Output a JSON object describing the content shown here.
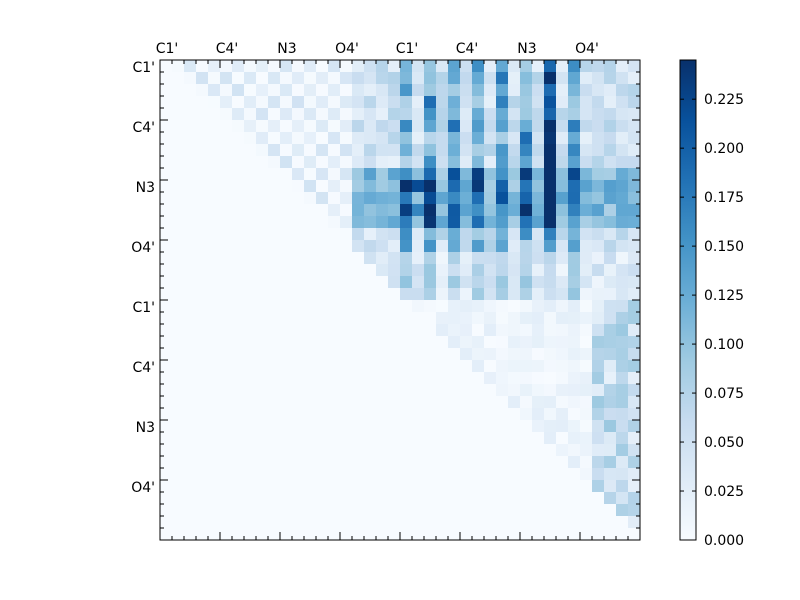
{
  "chart_data": {
    "type": "heatmap",
    "title": "",
    "xlabel": "",
    "ylabel": "",
    "colormap": "Blues",
    "n_rows": 40,
    "n_cols": 40,
    "x_tick_labels": [
      "C1'",
      "C4'",
      "N3",
      "O4'",
      "C1'",
      "C4'",
      "N3",
      "O4'"
    ],
    "y_tick_labels": [
      "C1'",
      "C4'",
      "N3",
      "O4'",
      "C1'",
      "C4'",
      "N3",
      "O4'"
    ],
    "tick_label_interval": 5,
    "colorbar": {
      "range": [
        0.0,
        0.245
      ],
      "tick_values": [
        0.0,
        0.025,
        0.05,
        0.075,
        0.1,
        0.125,
        0.15,
        0.175,
        0.2,
        0.225
      ],
      "tick_labels": [
        "0.000",
        "0.025",
        "0.050",
        "0.075",
        "0.100",
        "0.125",
        "0.150",
        "0.175",
        "0.200",
        "0.225"
      ]
    },
    "structure": "upper-triangular",
    "feature_columns": [
      20,
      22,
      24,
      26,
      28,
      30,
      32,
      34
    ]
  }
}
